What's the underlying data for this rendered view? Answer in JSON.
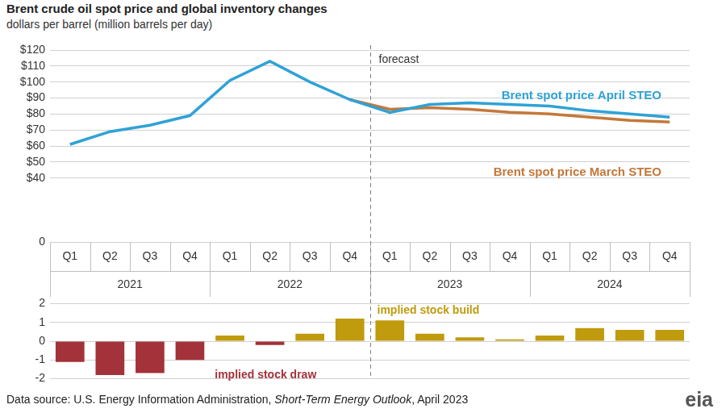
{
  "title": "Brent crude oil spot price and global inventory changes",
  "subtitle": "dollars per barrel (million barrels per day)",
  "source": {
    "text": "Data source: U.S. Energy Information Administration, Short-Term Energy Outlook, April 2023",
    "italic": "Short-Term Energy Outlook"
  },
  "logo": "eia",
  "chart_data": [
    {
      "type": "line",
      "categories": [
        "Q1",
        "Q2",
        "Q3",
        "Q4",
        "Q1",
        "Q2",
        "Q3",
        "Q4",
        "Q1",
        "Q2",
        "Q3",
        "Q4",
        "Q1",
        "Q2",
        "Q3",
        "Q4"
      ],
      "category_groups": [
        "2021",
        "2021",
        "2021",
        "2021",
        "2022",
        "2022",
        "2022",
        "2022",
        "2023",
        "2023",
        "2023",
        "2023",
        "2024",
        "2024",
        "2024",
        "2024"
      ],
      "series": [
        {
          "name": "Brent spot price April STEO",
          "color": "#2fa2d6",
          "marker": "none",
          "line_style": "solid",
          "values": [
            61,
            69,
            73,
            79,
            101,
            113,
            100,
            89,
            81,
            86,
            87,
            86,
            85,
            82,
            80,
            78
          ]
        },
        {
          "name": "Brent spot price March STEO",
          "color": "#c4783a",
          "marker": "none",
          "line_style": "solid",
          "values": [
            null,
            null,
            null,
            null,
            null,
            null,
            null,
            89,
            83,
            84,
            83,
            81,
            80,
            78,
            76,
            75
          ]
        }
      ],
      "ylim": [
        0,
        120
      ],
      "yticks": [
        0,
        {
          "value": 40,
          "label": "$40"
        },
        {
          "value": 50,
          "label": "$50"
        },
        {
          "value": 60,
          "label": "$60"
        },
        {
          "value": 70,
          "label": "$70"
        },
        {
          "value": 80,
          "label": "$80"
        },
        {
          "value": 90,
          "label": "$90"
        },
        {
          "value": 100,
          "label": "$100"
        },
        {
          "value": 110,
          "label": "$110"
        },
        {
          "value": 120,
          "label": "$120"
        }
      ],
      "grid": true,
      "forecast": {
        "label": "forecast",
        "start": "2023"
      }
    },
    {
      "type": "bar",
      "categories": [
        "Q1",
        "Q2",
        "Q3",
        "Q4",
        "Q1",
        "Q2",
        "Q3",
        "Q4",
        "Q1",
        "Q2",
        "Q3",
        "Q4",
        "Q1",
        "Q2",
        "Q3",
        "Q4"
      ],
      "values": [
        -1.1,
        -1.8,
        -1.7,
        -1.0,
        0.3,
        -0.2,
        0.4,
        1.2,
        1.1,
        0.4,
        0.2,
        0.1,
        0.3,
        0.7,
        0.6,
        0.6
      ],
      "colors": [
        "#a3323a",
        "#a3323a",
        "#a3323a",
        "#a3323a",
        "#bf9b0d",
        "#a3323a",
        "#bf9b0d",
        "#bf9b0d",
        "#bf9b0d",
        "#bf9b0d",
        "#bf9b0d",
        "#bf9b0d",
        "#bf9b0d",
        "#bf9b0d",
        "#bf9b0d",
        "#bf9b0d"
      ],
      "ylim": [
        -2,
        2
      ],
      "yticks": [
        -2,
        -1,
        0,
        1,
        2
      ],
      "grid": true,
      "tick_labels": "y",
      "annotations": [
        {
          "text": "implied stock build",
          "color": "#bf9b0d"
        },
        {
          "text": "implied stock draw",
          "color": "#a3323a"
        }
      ]
    }
  ]
}
